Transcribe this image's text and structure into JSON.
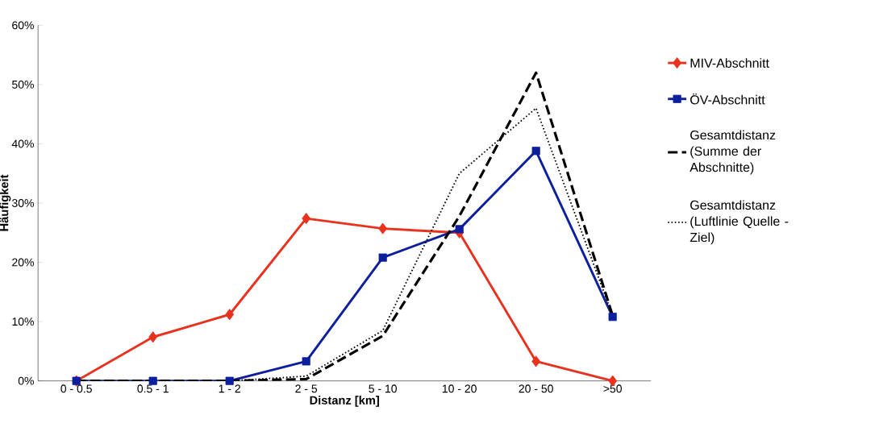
{
  "chart_data": {
    "type": "line",
    "xlabel": "Distanz [km]",
    "ylabel": "Häufigkeit",
    "categories": [
      "0 - 0.5",
      "0.5 - 1",
      "1 - 2",
      "2 - 5",
      "5 - 10",
      "10 - 20",
      "20 - 50",
      ">50"
    ],
    "series": [
      {
        "name": "MIV-Abschnitt",
        "color": "#e8321e",
        "marker": "diamond",
        "line_style": "solid",
        "values": [
          0,
          7.4,
          11.2,
          27.4,
          25.7,
          25.0,
          3.3,
          0
        ]
      },
      {
        "name": "ÖV-Abschnitt",
        "color": "#0c1f9e",
        "marker": "square",
        "line_style": "solid",
        "values": [
          0,
          0,
          0,
          3.3,
          20.8,
          25.6,
          38.8,
          10.8
        ]
      },
      {
        "name": "Gesamtdistanz (Summe der Abschnitte)",
        "color": "#000000",
        "marker": "none",
        "line_style": "dashed",
        "values": [
          0,
          0,
          0,
          0.3,
          7.6,
          27.8,
          52.0,
          11.0
        ]
      },
      {
        "name": "Gesamtdistanz (Luftlinie Quelle - Ziel)",
        "color": "#000000",
        "marker": "none",
        "line_style": "dotted",
        "values": [
          0,
          0,
          0,
          0.8,
          8.5,
          35.0,
          46.0,
          11.0
        ]
      }
    ],
    "ylim": [
      0,
      60
    ],
    "yticks": [
      {
        "value": 0,
        "label": "0%"
      },
      {
        "value": 10,
        "label": "10%"
      },
      {
        "value": 20,
        "label": "20%"
      },
      {
        "value": 30,
        "label": "30%"
      },
      {
        "value": 40,
        "label": "40%"
      },
      {
        "value": 50,
        "label": "50%"
      },
      {
        "value": 60,
        "label": "60%"
      }
    ],
    "grid": false,
    "legend": "right"
  }
}
